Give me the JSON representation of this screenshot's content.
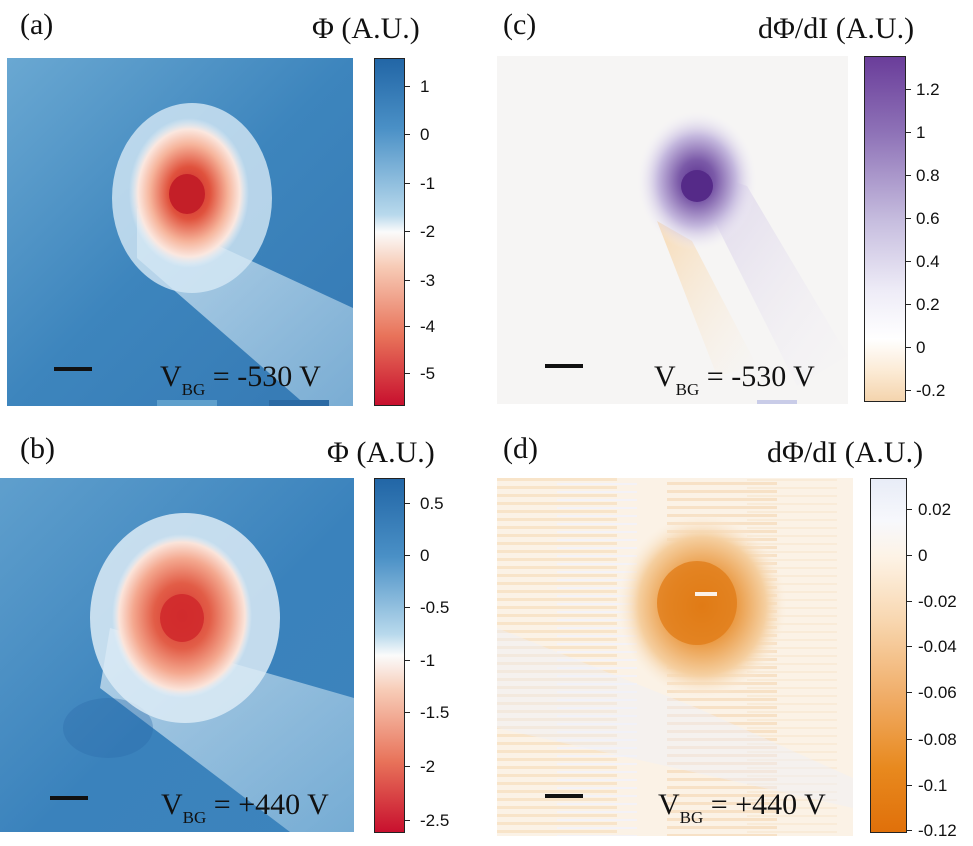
{
  "figure": {
    "panels": [
      {
        "id": "a",
        "label": "(a)",
        "quantity": "Φ (A.U.)",
        "voltage_label": "V",
        "voltage_sub": "BG",
        "voltage_value": " = -530 V",
        "colormap": "blue-red",
        "colorbar": {
          "ticks": [
            "1",
            "0",
            "-1",
            "-2",
            "-3",
            "-4",
            "-5"
          ],
          "min": -5.5,
          "max": 1.5
        }
      },
      {
        "id": "b",
        "label": "(b)",
        "quantity": "Φ (A.U.)",
        "voltage_label": "V",
        "voltage_sub": "BG",
        "voltage_value": " = +440 V",
        "colormap": "blue-red",
        "colorbar": {
          "ticks": [
            "0.5",
            "0",
            "-0.5",
            "-1",
            "-1.5",
            "-2",
            "-2.5"
          ],
          "min": -2.7,
          "max": 0.7
        }
      },
      {
        "id": "c",
        "label": "(c)",
        "quantity": "dΦ/dI (A.U.)",
        "voltage_label": "V",
        "voltage_sub": "BG",
        "voltage_value": " = -530 V",
        "colormap": "purple-orange",
        "colorbar": {
          "ticks": [
            "1.2",
            "1",
            "0.8",
            "0.6",
            "0.4",
            "0.2",
            "0",
            "-0.2"
          ],
          "min": -0.25,
          "max": 1.35
        }
      },
      {
        "id": "d",
        "label": "(d)",
        "quantity": "dΦ/dI (A.U.)",
        "voltage_label": "V",
        "voltage_sub": "BG",
        "voltage_value": " = +440 V",
        "colormap": "lavender-orange",
        "colorbar": {
          "ticks": [
            "0.02",
            "0",
            "-0.02",
            "-0.04",
            "-0.06",
            "-0.08",
            "-0.1",
            "-0.12"
          ],
          "min": -0.12,
          "max": 0.03
        }
      }
    ],
    "colors": {
      "blue_dark": "#2f74ad",
      "blue_light": "#dcecf6",
      "red_dark": "#c8232c",
      "purple": "#6a3d9a",
      "orange": "#e07b16"
    }
  }
}
